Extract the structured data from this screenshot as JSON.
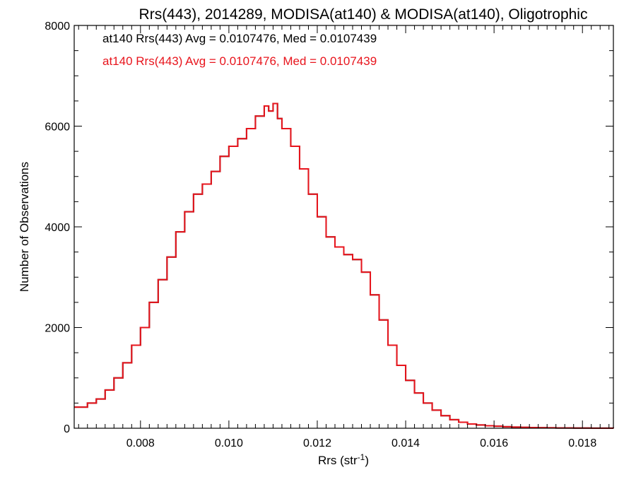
{
  "chart_data": {
    "type": "line",
    "title": "Rrs(443), 2014289, MODISA(at140) & MODISA(at140), Oligotrophic",
    "xlabel": "Rrs (str",
    "xlabel_superscript": "-1",
    "xlabel_suffix": ")",
    "ylabel": "Number of Observations",
    "xlim": [
      0.0065,
      0.0187
    ],
    "ylim": [
      0,
      8000
    ],
    "x_ticks": [
      "0.008",
      "0.010",
      "0.012",
      "0.014",
      "0.016",
      "0.018"
    ],
    "y_ticks": [
      "0",
      "2000",
      "4000",
      "6000",
      "8000"
    ],
    "grid": false,
    "colors": {
      "series_black": "#000000",
      "series_red": "#e8141c"
    },
    "annotations": [
      {
        "text": "at140 Rrs(443) Avg = 0.0107476, Med = 0.0107439",
        "color": "#000000"
      },
      {
        "text": "at140 Rrs(443) Avg = 0.0107476, Med = 0.0107439",
        "color": "#e8141c"
      }
    ],
    "x": [
      0.0065,
      0.0068,
      0.007,
      0.0072,
      0.0074,
      0.0076,
      0.0078,
      0.008,
      0.0082,
      0.0084,
      0.0086,
      0.0088,
      0.009,
      0.0092,
      0.0094,
      0.0096,
      0.0098,
      0.01,
      0.0102,
      0.0104,
      0.0106,
      0.0108,
      0.0109,
      0.011,
      0.0111,
      0.0112,
      0.0114,
      0.0116,
      0.0118,
      0.012,
      0.0122,
      0.0124,
      0.0126,
      0.0128,
      0.013,
      0.0132,
      0.0134,
      0.0136,
      0.0138,
      0.014,
      0.0142,
      0.0144,
      0.0146,
      0.0148,
      0.015,
      0.0152,
      0.0154,
      0.0156,
      0.0158,
      0.016,
      0.0162,
      0.0164,
      0.0166,
      0.0168,
      0.017,
      0.0172,
      0.0174,
      0.0176,
      0.0178,
      0.018,
      0.0182,
      0.0184,
      0.0187
    ],
    "series": [
      {
        "values": [
          420,
          500,
          580,
          760,
          1000,
          1300,
          1650,
          2000,
          2500,
          2950,
          3400,
          3900,
          4300,
          4650,
          4850,
          5100,
          5400,
          5600,
          5750,
          5950,
          6200,
          6400,
          6300,
          6450,
          6150,
          5950,
          5600,
          5150,
          4650,
          4200,
          3800,
          3600,
          3450,
          3350,
          3100,
          2650,
          2150,
          1650,
          1250,
          950,
          700,
          500,
          360,
          250,
          170,
          120,
          85,
          65,
          50,
          40,
          30,
          22,
          18,
          14,
          10,
          8,
          6,
          5,
          4,
          3,
          2,
          2,
          1
        ]
      },
      {
        "values": [
          420,
          500,
          580,
          760,
          1000,
          1300,
          1650,
          2000,
          2500,
          2950,
          3400,
          3900,
          4300,
          4650,
          4850,
          5100,
          5400,
          5600,
          5750,
          5950,
          6200,
          6400,
          6300,
          6450,
          6150,
          5950,
          5600,
          5150,
          4650,
          4200,
          3800,
          3600,
          3450,
          3350,
          3100,
          2650,
          2150,
          1650,
          1250,
          950,
          700,
          500,
          360,
          250,
          170,
          120,
          85,
          65,
          50,
          40,
          30,
          22,
          18,
          14,
          10,
          8,
          6,
          5,
          4,
          3,
          2,
          2,
          1
        ]
      }
    ]
  }
}
